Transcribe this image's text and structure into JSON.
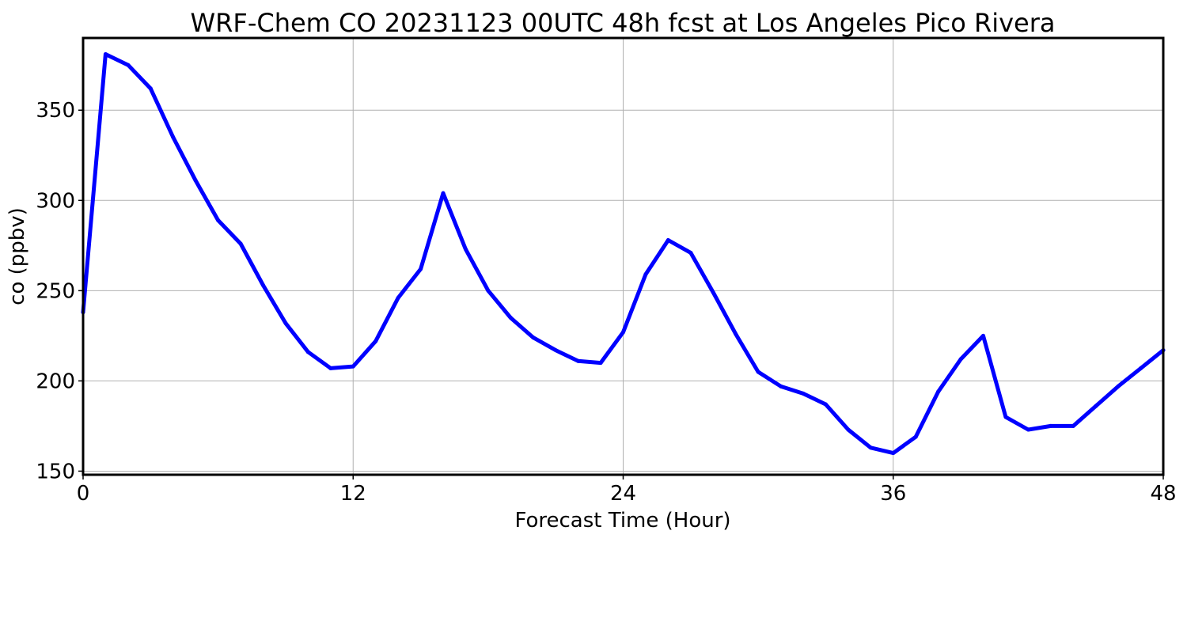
{
  "chart_data": {
    "type": "line",
    "title": "WRF-Chem CO  20231123 00UTC 48h fcst at Los Angeles Pico Rivera",
    "xlabel": "Forecast Time (Hour)",
    "ylabel": "co  (ppbv)",
    "xlim": [
      0,
      48
    ],
    "ylim": [
      148,
      390
    ],
    "xticks": [
      0,
      12,
      24,
      36,
      48
    ],
    "yticks": [
      150,
      200,
      250,
      300,
      350
    ],
    "grid": true,
    "series": [
      {
        "color": "#0000ff",
        "x": [
          0,
          1,
          2,
          3,
          4,
          5,
          6,
          7,
          8,
          9,
          10,
          11,
          12,
          13,
          14,
          15,
          16,
          17,
          18,
          19,
          20,
          21,
          22,
          23,
          24,
          25,
          26,
          27,
          28,
          29,
          30,
          31,
          32,
          33,
          34,
          35,
          36,
          37,
          38,
          39,
          40,
          41,
          42,
          43,
          44,
          45,
          46,
          47,
          48
        ],
        "values": [
          238,
          381,
          375,
          362,
          335,
          311,
          289,
          276,
          253,
          232,
          216,
          207,
          208,
          222,
          246,
          262,
          304,
          273,
          250,
          235,
          224,
          217,
          211,
          210,
          227,
          259,
          278,
          271,
          249,
          226,
          205,
          197,
          193,
          187,
          173,
          163,
          160,
          169,
          194,
          212,
          225,
          180,
          173,
          175,
          175,
          186,
          197,
          207,
          217
        ]
      }
    ]
  }
}
